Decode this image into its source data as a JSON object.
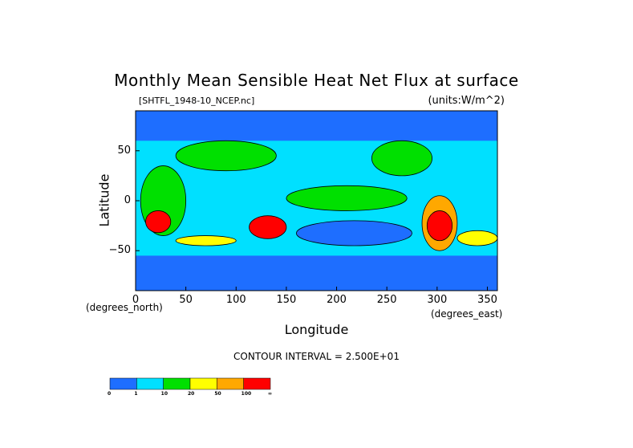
{
  "title": "Monthly Mean Sensible Heat Net Flux at surface",
  "file_label": "[SHTFL_1948-10_NCEP.nc]",
  "units_label": "(units:W/m^2)",
  "contour_text": "CONTOUR INTERVAL = 2.500E+01",
  "chart_data": {
    "type": "heatmap",
    "title": "Monthly Mean Sensible Heat Net Flux at surface",
    "xlabel": "Longitude",
    "ylabel": "Latitude",
    "x_unit_label": "(degrees_east)",
    "y_unit_label": "(degrees_north)",
    "xlim": [
      0,
      360
    ],
    "ylim": [
      -90,
      90
    ],
    "x_ticks": [
      "0",
      "50",
      "100",
      "150",
      "200",
      "250",
      "300",
      "350"
    ],
    "x_tick_values": [
      0,
      50,
      100,
      150,
      200,
      250,
      300,
      350
    ],
    "y_ticks": [
      "50",
      "0",
      "−50"
    ],
    "y_tick_values": [
      50,
      0,
      -50
    ],
    "colorbar": {
      "colors": [
        "#1e6eff",
        "#00e0ff",
        "#00e000",
        "#ffff00",
        "#ffa800",
        "#ff0000"
      ],
      "labels": [
        "0",
        "1",
        "10",
        "20",
        "50",
        "100",
        "∞"
      ]
    },
    "fields": {
      "background": "#00e0ff",
      "ocean_cold": "#1e6eff",
      "land_warm": "#00e000",
      "yellow": "#ffff00",
      "orange": "#ffa800",
      "red": "#ff0000"
    },
    "regions": [
      {
        "name": "north-polar-band",
        "level": 0,
        "lon": [
          0,
          360
        ],
        "lat": [
          60,
          90
        ]
      },
      {
        "name": "southern-ocean",
        "level": 0,
        "lon": [
          0,
          360
        ],
        "lat": [
          -90,
          -55
        ]
      },
      {
        "name": "south-pacific-cool",
        "level": 0,
        "lon": [
          160,
          275
        ],
        "lat": [
          -45,
          -20
        ]
      },
      {
        "name": "africa",
        "level": 2,
        "lon": [
          5,
          50
        ],
        "lat": [
          -35,
          35
        ]
      },
      {
        "name": "south-africa-hot",
        "level": 5,
        "lon": [
          10,
          35
        ],
        "lat": [
          -32,
          -10
        ]
      },
      {
        "name": "australia",
        "level": 5,
        "lon": [
          113,
          150
        ],
        "lat": [
          -38,
          -15
        ]
      },
      {
        "name": "south-america",
        "level": 4,
        "lon": [
          285,
          320
        ],
        "lat": [
          -50,
          5
        ]
      },
      {
        "name": "south-america-hot",
        "level": 5,
        "lon": [
          290,
          315
        ],
        "lat": [
          -40,
          -10
        ]
      },
      {
        "name": "eurasia",
        "level": 2,
        "lon": [
          40,
          140
        ],
        "lat": [
          30,
          60
        ]
      },
      {
        "name": "north-america",
        "level": 2,
        "lon": [
          235,
          295
        ],
        "lat": [
          25,
          60
        ]
      },
      {
        "name": "tropical-pacific",
        "level": 2,
        "lon": [
          150,
          270
        ],
        "lat": [
          -10,
          15
        ]
      },
      {
        "name": "south-atlantic-yellow",
        "level": 3,
        "lon": [
          320,
          360
        ],
        "lat": [
          -45,
          -30
        ]
      },
      {
        "name": "south-indian-yellow",
        "level": 3,
        "lon": [
          40,
          100
        ],
        "lat": [
          -45,
          -35
        ]
      }
    ]
  }
}
